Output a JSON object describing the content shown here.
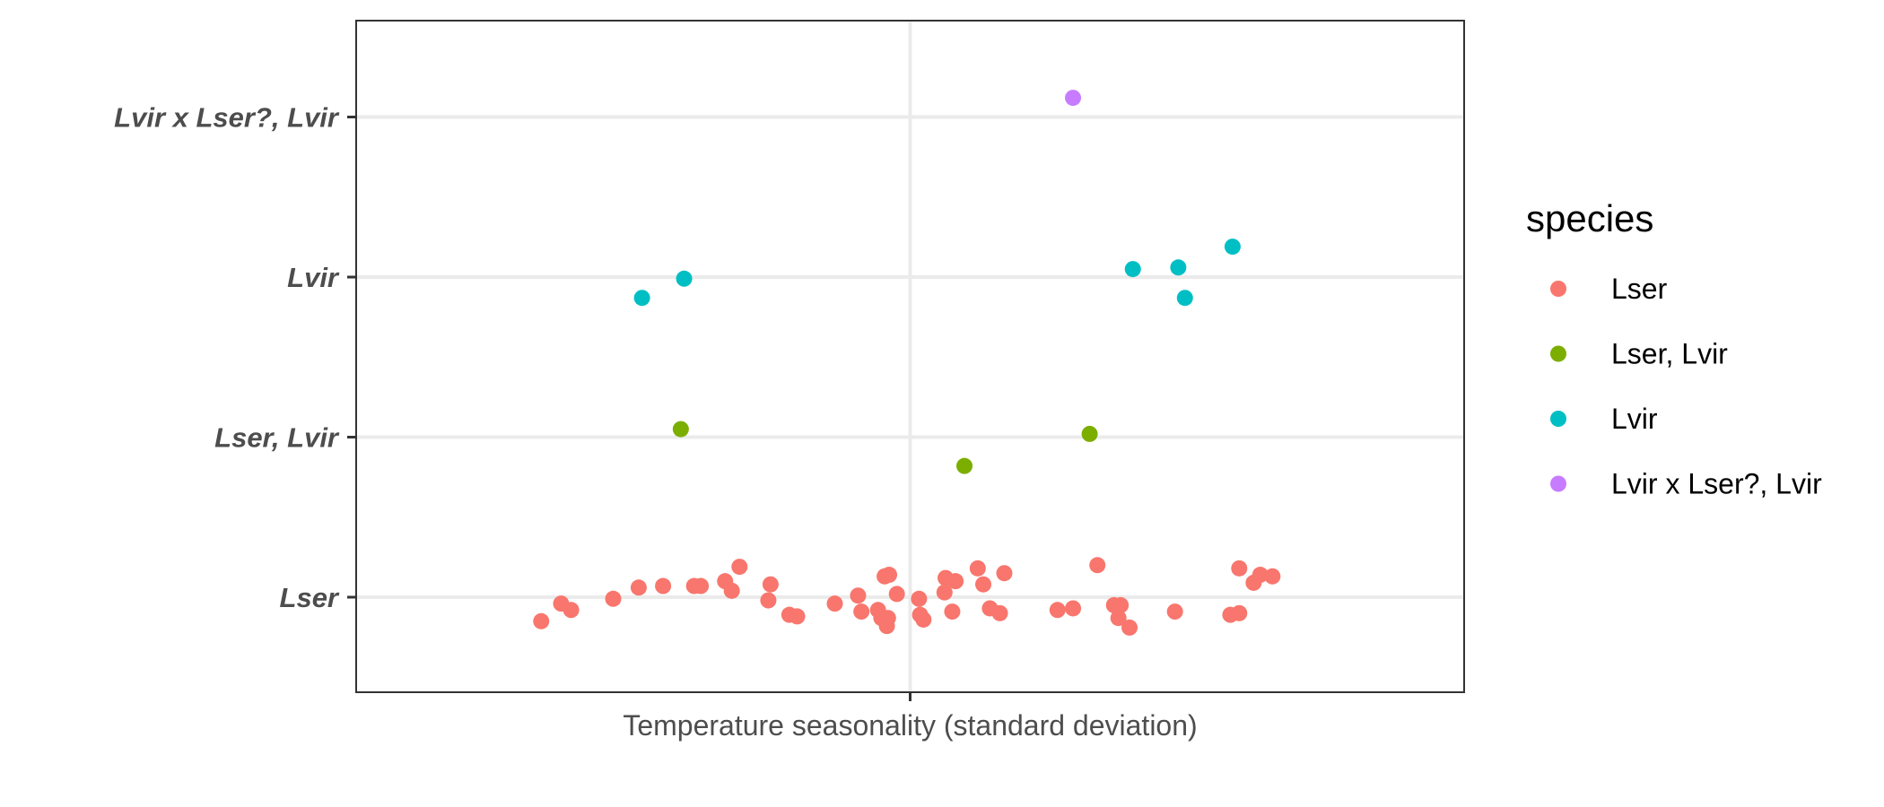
{
  "chart_data": {
    "type": "scatter",
    "xlabel": "Temperature seasonality (standard deviation)",
    "ylabel": "",
    "xlim": [
      0,
      1
    ],
    "categories": [
      "Lser",
      "Lser, Lvir",
      "Lvir",
      "Lvir x Lser?, Lvir"
    ],
    "x_ticks": [
      0.5
    ],
    "grid": true,
    "legend": {
      "title": "species",
      "placement": "right",
      "entries": [
        "Lser",
        "Lser, Lvir",
        "Lvir",
        "Lvir x Lser?, Lvir"
      ]
    },
    "colors": {
      "Lser": "#F8766D",
      "Lser, Lvir": "#7CAE00",
      "Lvir": "#00BFC4",
      "Lvir x Lser?, Lvir": "#C77CFF"
    },
    "series": [
      {
        "name": "Lser",
        "points": [
          {
            "x": 0.167,
            "y": -0.15
          },
          {
            "x": 0.185,
            "y": -0.04
          },
          {
            "x": 0.194,
            "y": -0.08
          },
          {
            "x": 0.232,
            "y": -0.01
          },
          {
            "x": 0.255,
            "y": 0.06
          },
          {
            "x": 0.277,
            "y": 0.07
          },
          {
            "x": 0.305,
            "y": 0.07
          },
          {
            "x": 0.311,
            "y": 0.07
          },
          {
            "x": 0.333,
            "y": 0.1
          },
          {
            "x": 0.339,
            "y": 0.04
          },
          {
            "x": 0.346,
            "y": 0.19
          },
          {
            "x": 0.374,
            "y": 0.08
          },
          {
            "x": 0.372,
            "y": -0.02
          },
          {
            "x": 0.391,
            "y": -0.11
          },
          {
            "x": 0.398,
            "y": -0.12
          },
          {
            "x": 0.432,
            "y": -0.04
          },
          {
            "x": 0.453,
            "y": 0.01
          },
          {
            "x": 0.456,
            "y": -0.09
          },
          {
            "x": 0.471,
            "y": -0.08
          },
          {
            "x": 0.474,
            "y": -0.13
          },
          {
            "x": 0.477,
            "y": 0.13
          },
          {
            "x": 0.481,
            "y": 0.14
          },
          {
            "x": 0.479,
            "y": -0.18
          },
          {
            "x": 0.48,
            "y": -0.13
          },
          {
            "x": 0.488,
            "y": 0.02
          },
          {
            "x": 0.508,
            "y": -0.01
          },
          {
            "x": 0.509,
            "y": -0.11
          },
          {
            "x": 0.512,
            "y": -0.14
          },
          {
            "x": 0.531,
            "y": 0.03
          },
          {
            "x": 0.532,
            "y": 0.12
          },
          {
            "x": 0.538,
            "y": -0.09
          },
          {
            "x": 0.541,
            "y": 0.1
          },
          {
            "x": 0.561,
            "y": 0.18
          },
          {
            "x": 0.566,
            "y": 0.08
          },
          {
            "x": 0.572,
            "y": -0.07
          },
          {
            "x": 0.581,
            "y": -0.1
          },
          {
            "x": 0.585,
            "y": 0.15
          },
          {
            "x": 0.633,
            "y": -0.08
          },
          {
            "x": 0.647,
            "y": -0.07
          },
          {
            "x": 0.669,
            "y": 0.2
          },
          {
            "x": 0.684,
            "y": -0.05
          },
          {
            "x": 0.69,
            "y": -0.05
          },
          {
            "x": 0.688,
            "y": -0.13
          },
          {
            "x": 0.698,
            "y": -0.19
          },
          {
            "x": 0.739,
            "y": -0.09
          },
          {
            "x": 0.789,
            "y": -0.11
          },
          {
            "x": 0.797,
            "y": -0.1
          },
          {
            "x": 0.797,
            "y": 0.18
          },
          {
            "x": 0.81,
            "y": 0.09
          },
          {
            "x": 0.816,
            "y": 0.14
          },
          {
            "x": 0.827,
            "y": 0.13
          }
        ]
      },
      {
        "name": "Lser, Lvir",
        "points": [
          {
            "x": 0.293,
            "y": 1.05
          },
          {
            "x": 0.549,
            "y": 0.82
          },
          {
            "x": 0.662,
            "y": 1.02
          }
        ]
      },
      {
        "name": "Lvir",
        "points": [
          {
            "x": 0.258,
            "y": 1.87
          },
          {
            "x": 0.296,
            "y": 1.99
          },
          {
            "x": 0.701,
            "y": 2.05
          },
          {
            "x": 0.742,
            "y": 2.06
          },
          {
            "x": 0.748,
            "y": 1.87
          },
          {
            "x": 0.791,
            "y": 2.19
          }
        ]
      },
      {
        "name": "Lvir x Lser?, Lvir",
        "points": [
          {
            "x": 0.647,
            "y": 3.12
          }
        ]
      }
    ]
  }
}
